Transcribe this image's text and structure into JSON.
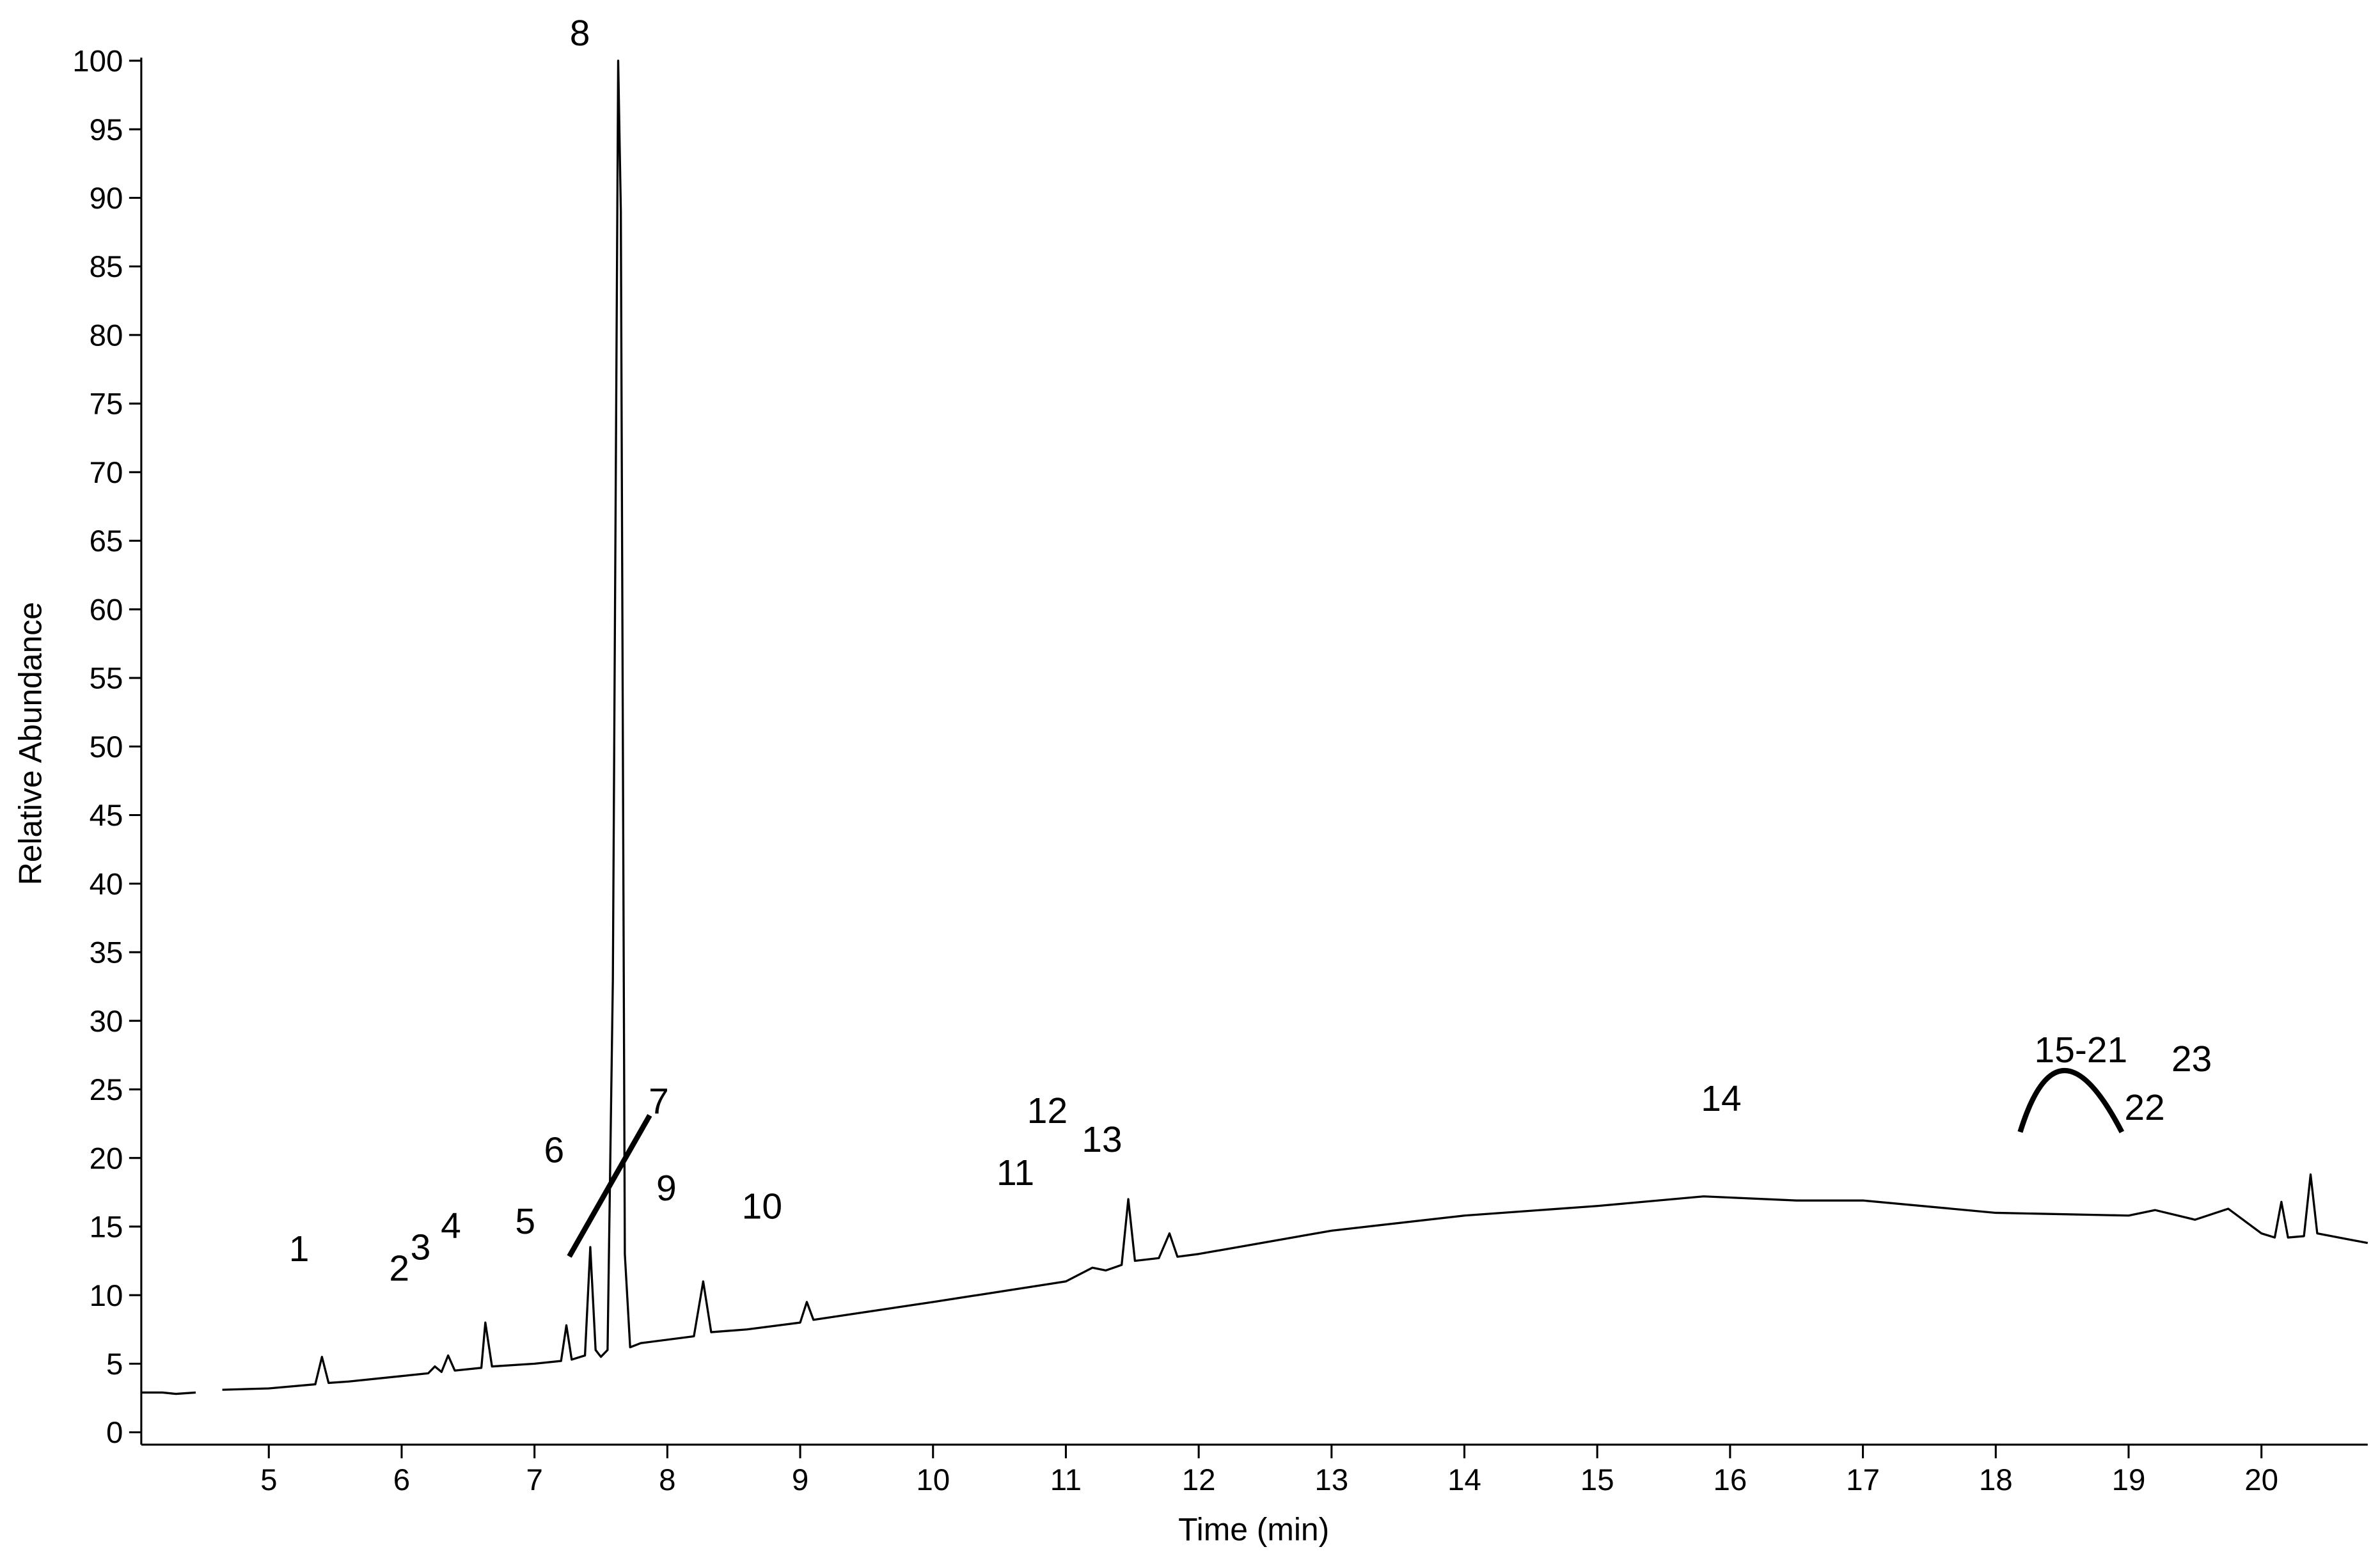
{
  "chart_data": {
    "type": "line",
    "x_label": "Time (min)",
    "y_label": "Relative Abundance",
    "xlim": [
      4.04,
      20.8
    ],
    "ylim": [
      -0.9,
      100
    ],
    "xticks": [
      5,
      6,
      7,
      8,
      9,
      10,
      11,
      12,
      13,
      14,
      15,
      16,
      17,
      18,
      19,
      20
    ],
    "yticks": [
      0,
      5,
      10,
      15,
      20,
      25,
      30,
      35,
      40,
      45,
      50,
      55,
      60,
      65,
      70,
      75,
      80,
      85,
      90,
      95,
      100
    ],
    "grid": false,
    "series": [
      {
        "color": "#000000",
        "x": [
          4.04,
          4.2,
          4.3,
          4.45,
          4.55,
          4.65,
          5.0,
          5.35,
          5.4,
          5.45,
          5.6,
          6.0,
          6.2,
          6.25,
          6.3,
          6.35,
          6.4,
          6.6,
          6.63,
          6.68,
          7.0,
          7.2,
          7.24,
          7.28,
          7.38,
          7.42,
          7.46,
          7.5,
          7.55,
          7.59,
          7.63,
          7.65,
          7.68,
          7.72,
          7.8,
          8.2,
          8.27,
          8.33,
          8.6,
          9.0,
          9.05,
          9.1,
          10,
          11,
          11.2,
          11.3,
          11.42,
          11.47,
          11.52,
          11.7,
          11.78,
          11.84,
          12,
          13,
          14,
          15,
          15.8,
          16.5,
          17,
          18,
          19,
          19.2,
          19.5,
          19.75,
          20,
          20.1,
          20.15,
          20.2,
          20.32,
          20.37,
          20.42,
          20.8
        ],
        "values": [
          2.9,
          2.9,
          2.8,
          2.9,
          null,
          3.1,
          3.2,
          3.5,
          5.5,
          3.6,
          3.7,
          4.1,
          4.3,
          4.8,
          4.4,
          5.6,
          4.5,
          4.7,
          8,
          4.8,
          5,
          5.2,
          7.8,
          5.3,
          5.6,
          13.5,
          6,
          5.5,
          6,
          33,
          100,
          89,
          13,
          6.2,
          6.5,
          7,
          11,
          7.3,
          7.5,
          8,
          9.5,
          8.2,
          9.5,
          11,
          12,
          11.8,
          12.2,
          17,
          12.5,
          12.7,
          14.5,
          12.8,
          13,
          14.7,
          15.8,
          16.5,
          17.2,
          16.9,
          16.9,
          16,
          15.8,
          16.2,
          15.5,
          16.3,
          14.5,
          14.2,
          16.8,
          14.2,
          14.3,
          18.8,
          14.5,
          13.8
        ]
      }
    ],
    "annotations": [
      "1",
      "2",
      "3",
      "4",
      "5",
      "6",
      "7",
      "8",
      "9",
      "10",
      "11",
      "12",
      "13",
      "14",
      "15-21",
      "22",
      "23"
    ]
  }
}
